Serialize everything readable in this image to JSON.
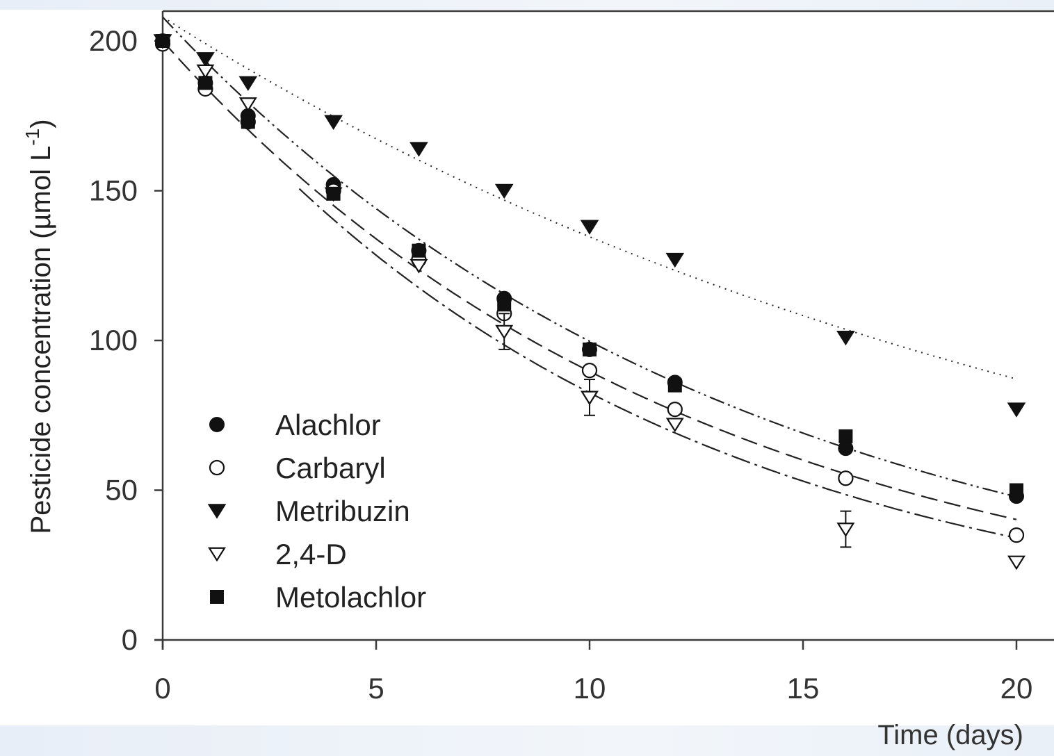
{
  "chart_data": {
    "type": "scatter",
    "title": "",
    "xlabel": "Time (days)",
    "ylabel": "Pesticide concentration (µmol L",
    "ylabel_superscript": "-1",
    "ylabel_close": ")",
    "xlim": [
      0,
      20.8
    ],
    "ylim": [
      0,
      210
    ],
    "x_ticks": [
      0,
      5,
      10,
      15,
      20
    ],
    "x_tick_labels": [
      "0",
      "5",
      "10",
      "15",
      "20"
    ],
    "y_ticks": [
      0,
      50,
      100,
      150,
      200
    ],
    "y_tick_labels": [
      "0",
      "50",
      "100",
      "150",
      "200"
    ],
    "grid": false,
    "legend_position": "bottom-left",
    "series": [
      {
        "name": "Alachlor",
        "marker": "filled-circle",
        "x": [
          0,
          1,
          2,
          4,
          6,
          8,
          10,
          12,
          16,
          20
        ],
        "y": [
          200,
          186,
          175,
          152,
          130,
          114,
          97,
          86,
          64,
          48
        ]
      },
      {
        "name": "Carbaryl",
        "marker": "open-circle",
        "x": [
          0,
          1,
          2,
          4,
          6,
          8,
          10,
          12,
          16,
          20
        ],
        "y": [
          199,
          184,
          173,
          150,
          127,
          109,
          90,
          77,
          54,
          35
        ]
      },
      {
        "name": "Metribuzin",
        "marker": "filled-triangle-down",
        "x": [
          0,
          1,
          2,
          4,
          6,
          8,
          10,
          12,
          16,
          20
        ],
        "y": [
          200,
          194,
          186,
          173,
          164,
          150,
          138,
          127,
          101,
          77
        ]
      },
      {
        "name": "2,4-D",
        "marker": "open-triangle-down",
        "x": [
          0,
          1,
          2,
          4,
          6,
          8,
          10,
          12,
          16,
          20
        ],
        "y": [
          200,
          190,
          179,
          149,
          125,
          103,
          81,
          72,
          37,
          26
        ]
      },
      {
        "name": "Metolachlor",
        "marker": "filled-square",
        "x": [
          0,
          1,
          2,
          4,
          6,
          8,
          10,
          12,
          16,
          20
        ],
        "y": [
          200,
          186,
          173,
          149,
          130,
          112,
          97,
          85,
          68,
          50
        ]
      }
    ],
    "fit_curves": [
      {
        "series": "Metribuzin",
        "style": "dotted",
        "y0": 208,
        "rate": 0.0435
      },
      {
        "series": "Alachlor",
        "style": "dash-dot-dot",
        "y0": 208,
        "rate": 0.0735
      },
      {
        "series": "Carbaryl",
        "style": "dashed",
        "y0": 200,
        "rate": 0.0802
      },
      {
        "series": "2,4-D",
        "style": "dash-dot",
        "y0": 200,
        "rate": 0.0885
      }
    ],
    "colors": {
      "axis": "#3a3a3a",
      "marker": "#111111",
      "text": "#333333",
      "background_band": "#e8eef7"
    }
  }
}
